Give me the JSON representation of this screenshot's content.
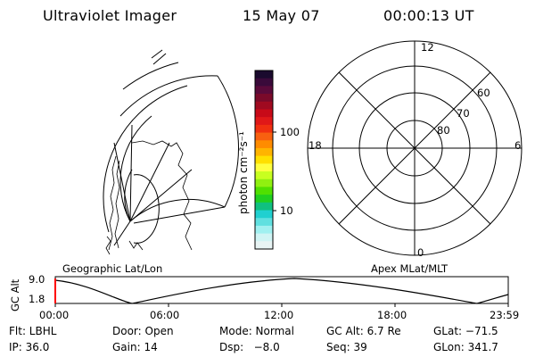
{
  "header": {
    "instrument": "Ultraviolet Imager",
    "date": "15 May 07",
    "time": "00:00:13 UT"
  },
  "colorbar": {
    "unit_label": "photon cm⁻²s⁻¹",
    "ticks": [
      "100",
      "10"
    ],
    "colors": [
      "#1a0a2e",
      "#3a0a3a",
      "#5a0a3a",
      "#7a0a2a",
      "#a00a20",
      "#c80a18",
      "#e01818",
      "#f03010",
      "#f86010",
      "#ff8c00",
      "#ffb400",
      "#ffe000",
      "#ffff40",
      "#c8ff20",
      "#90f010",
      "#50e000",
      "#20d020",
      "#10c080",
      "#20d0d0",
      "#60e0e0",
      "#a0f0f0",
      "#d0f4f4",
      "#e8f4f4"
    ]
  },
  "left_panel": {
    "title": "Geographic Lat/Lon"
  },
  "polar_plot": {
    "title": "Apex MLat/MLT",
    "mlt_labels": {
      "top": "12",
      "left": "18",
      "right": "6",
      "bottom": "0"
    },
    "lat_labels": [
      "60",
      "70",
      "80"
    ]
  },
  "orbit_plot": {
    "ylabel": "GC Alt",
    "y_ticks": [
      "9.0",
      "1.8"
    ],
    "x_ticks": [
      "00:00",
      "06:00",
      "12:00",
      "18:00",
      "23:59"
    ],
    "marker_color": "#ff0000"
  },
  "status": {
    "row1": [
      "Flt: LBHL",
      "Door: Open",
      "Mode: Normal",
      "GC Alt: 6.7 Re",
      "GLat: −71.5"
    ],
    "row2": [
      "IP: 36.0",
      "Gain: 14",
      "Dsp:   −8.0",
      "Seq: 39",
      "GLon: 341.7"
    ]
  }
}
